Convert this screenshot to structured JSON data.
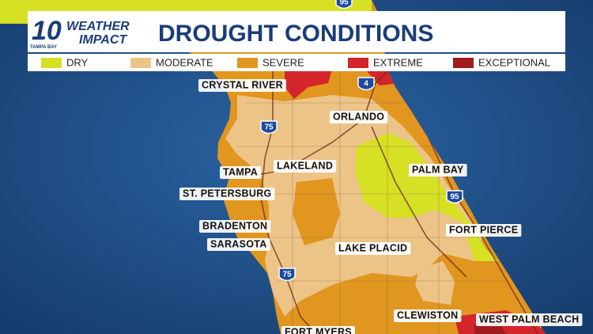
{
  "logo": {
    "number": "10",
    "line1": "WEATHER",
    "line2": "IMPACT",
    "station": "TAMPA BAY"
  },
  "header": {
    "title": "DROUGHT CONDITIONS"
  },
  "legend": {
    "items": [
      {
        "label": "DRY",
        "color": "#d6e024"
      },
      {
        "label": "MODERATE",
        "color": "#edc487"
      },
      {
        "label": "SEVERE",
        "color": "#e0961f"
      },
      {
        "label": "EXTREME",
        "color": "#d4252a"
      },
      {
        "label": "EXCEPTIONAL",
        "color": "#a01c1e"
      }
    ]
  },
  "cities": [
    "CRYSTAL RIVER",
    "ORLANDO",
    "TAMPA",
    "LAKELAND",
    "PALM BAY",
    "ST. PETERSBURG",
    "BRADENTON",
    "FORT PIERCE",
    "SARASOTA",
    "LAKE PLACID",
    "CLEWISTON",
    "WEST PALM BEACH",
    "FORT MYERS"
  ],
  "highways": [
    "95",
    "4",
    "75",
    "95",
    "75"
  ]
}
